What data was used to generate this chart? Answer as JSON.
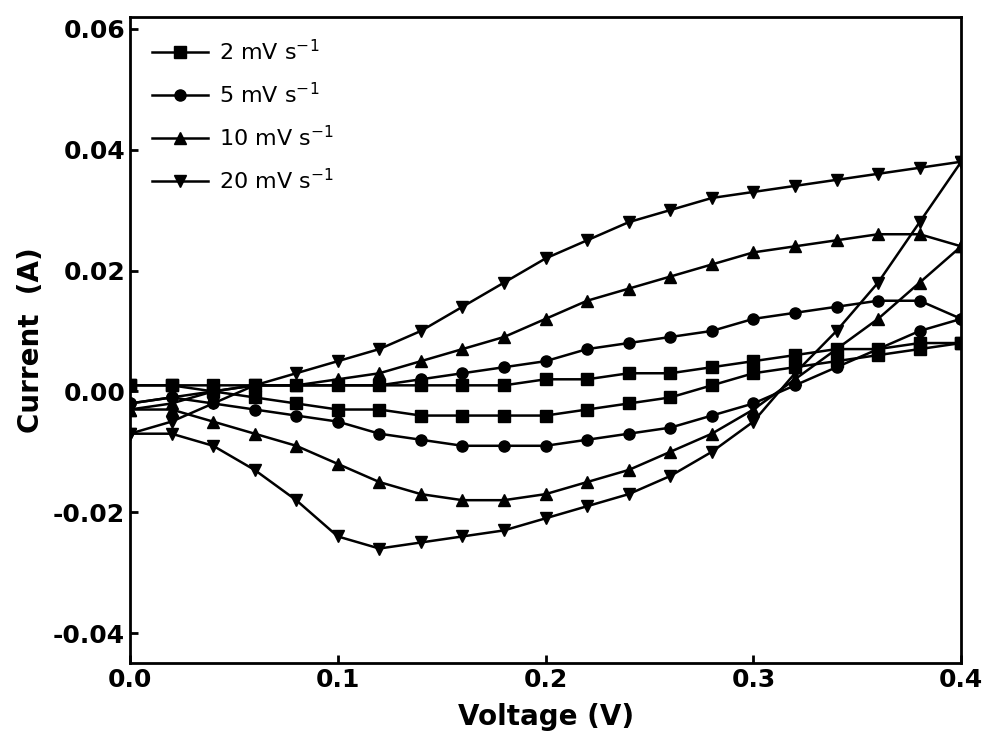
{
  "title": "",
  "xlabel": "Voltage (V)",
  "ylabel": "Current  (A)",
  "xlim": [
    0.0,
    0.4
  ],
  "ylim": [
    -0.045,
    0.062
  ],
  "yticks": [
    -0.04,
    -0.02,
    0.0,
    0.02,
    0.04,
    0.06
  ],
  "xticks": [
    0.0,
    0.1,
    0.2,
    0.3,
    0.4
  ],
  "background_color": "#ffffff",
  "line_color": "#000000",
  "series": [
    {
      "label": "2 mV s$^{-1}$",
      "marker": "s",
      "upper_x": [
        0.0,
        0.02,
        0.04,
        0.06,
        0.08,
        0.1,
        0.12,
        0.14,
        0.16,
        0.18,
        0.2,
        0.22,
        0.24,
        0.26,
        0.28,
        0.3,
        0.32,
        0.34,
        0.36,
        0.38,
        0.4
      ],
      "upper_y": [
        0.001,
        0.001,
        0.001,
        0.001,
        0.001,
        0.001,
        0.001,
        0.001,
        0.001,
        0.001,
        0.002,
        0.002,
        0.003,
        0.003,
        0.004,
        0.005,
        0.006,
        0.007,
        0.007,
        0.008,
        0.008
      ],
      "lower_x": [
        0.4,
        0.38,
        0.36,
        0.34,
        0.32,
        0.3,
        0.28,
        0.26,
        0.24,
        0.22,
        0.2,
        0.18,
        0.16,
        0.14,
        0.12,
        0.1,
        0.08,
        0.06,
        0.04,
        0.02,
        0.0
      ],
      "lower_y": [
        0.008,
        0.007,
        0.006,
        0.005,
        0.004,
        0.003,
        0.001,
        -0.001,
        -0.002,
        -0.003,
        -0.004,
        -0.004,
        -0.004,
        -0.004,
        -0.003,
        -0.003,
        -0.002,
        -0.001,
        0.0,
        0.001,
        0.001
      ]
    },
    {
      "label": "5 mV s$^{-1}$",
      "marker": "o",
      "upper_x": [
        0.0,
        0.02,
        0.04,
        0.06,
        0.08,
        0.1,
        0.12,
        0.14,
        0.16,
        0.18,
        0.2,
        0.22,
        0.24,
        0.26,
        0.28,
        0.3,
        0.32,
        0.34,
        0.36,
        0.38,
        0.4
      ],
      "upper_y": [
        -0.002,
        -0.001,
        0.0,
        0.001,
        0.001,
        0.001,
        0.001,
        0.002,
        0.003,
        0.004,
        0.005,
        0.007,
        0.008,
        0.009,
        0.01,
        0.012,
        0.013,
        0.014,
        0.015,
        0.015,
        0.012
      ],
      "lower_x": [
        0.4,
        0.38,
        0.36,
        0.34,
        0.32,
        0.3,
        0.28,
        0.26,
        0.24,
        0.22,
        0.2,
        0.18,
        0.16,
        0.14,
        0.12,
        0.1,
        0.08,
        0.06,
        0.04,
        0.02,
        0.0
      ],
      "lower_y": [
        0.012,
        0.01,
        0.007,
        0.004,
        0.001,
        -0.002,
        -0.004,
        -0.006,
        -0.007,
        -0.008,
        -0.009,
        -0.009,
        -0.009,
        -0.008,
        -0.007,
        -0.005,
        -0.004,
        -0.003,
        -0.002,
        -0.001,
        -0.002
      ]
    },
    {
      "label": "10 mV s$^{-1}$",
      "marker": "^",
      "upper_x": [
        0.0,
        0.02,
        0.04,
        0.06,
        0.08,
        0.1,
        0.12,
        0.14,
        0.16,
        0.18,
        0.2,
        0.22,
        0.24,
        0.26,
        0.28,
        0.3,
        0.32,
        0.34,
        0.36,
        0.38,
        0.4
      ],
      "upper_y": [
        -0.003,
        -0.002,
        0.0,
        0.001,
        0.001,
        0.002,
        0.003,
        0.005,
        0.007,
        0.009,
        0.012,
        0.015,
        0.017,
        0.019,
        0.021,
        0.023,
        0.024,
        0.025,
        0.026,
        0.026,
        0.024
      ],
      "lower_x": [
        0.4,
        0.38,
        0.36,
        0.34,
        0.32,
        0.3,
        0.28,
        0.26,
        0.24,
        0.22,
        0.2,
        0.18,
        0.16,
        0.14,
        0.12,
        0.1,
        0.08,
        0.06,
        0.04,
        0.02,
        0.0
      ],
      "lower_y": [
        0.024,
        0.018,
        0.012,
        0.007,
        0.002,
        -0.003,
        -0.007,
        -0.01,
        -0.013,
        -0.015,
        -0.017,
        -0.018,
        -0.018,
        -0.017,
        -0.015,
        -0.012,
        -0.009,
        -0.007,
        -0.005,
        -0.003,
        -0.003
      ]
    },
    {
      "label": "20 mV s$^{-1}$",
      "marker": "v",
      "upper_x": [
        0.0,
        0.02,
        0.04,
        0.06,
        0.08,
        0.1,
        0.12,
        0.14,
        0.16,
        0.18,
        0.2,
        0.22,
        0.24,
        0.26,
        0.28,
        0.3,
        0.32,
        0.34,
        0.36,
        0.38,
        0.4
      ],
      "upper_y": [
        -0.007,
        -0.005,
        -0.002,
        0.001,
        0.003,
        0.005,
        0.007,
        0.01,
        0.014,
        0.018,
        0.022,
        0.025,
        0.028,
        0.03,
        0.032,
        0.033,
        0.034,
        0.035,
        0.036,
        0.037,
        0.038
      ],
      "lower_x": [
        0.4,
        0.38,
        0.36,
        0.34,
        0.32,
        0.3,
        0.28,
        0.26,
        0.24,
        0.22,
        0.2,
        0.18,
        0.16,
        0.14,
        0.12,
        0.1,
        0.08,
        0.06,
        0.04,
        0.02,
        0.0
      ],
      "lower_y": [
        0.038,
        0.028,
        0.018,
        0.01,
        0.003,
        -0.005,
        -0.01,
        -0.014,
        -0.017,
        -0.019,
        -0.021,
        -0.023,
        -0.024,
        -0.025,
        -0.026,
        -0.024,
        -0.018,
        -0.013,
        -0.009,
        -0.007,
        -0.007
      ]
    }
  ]
}
